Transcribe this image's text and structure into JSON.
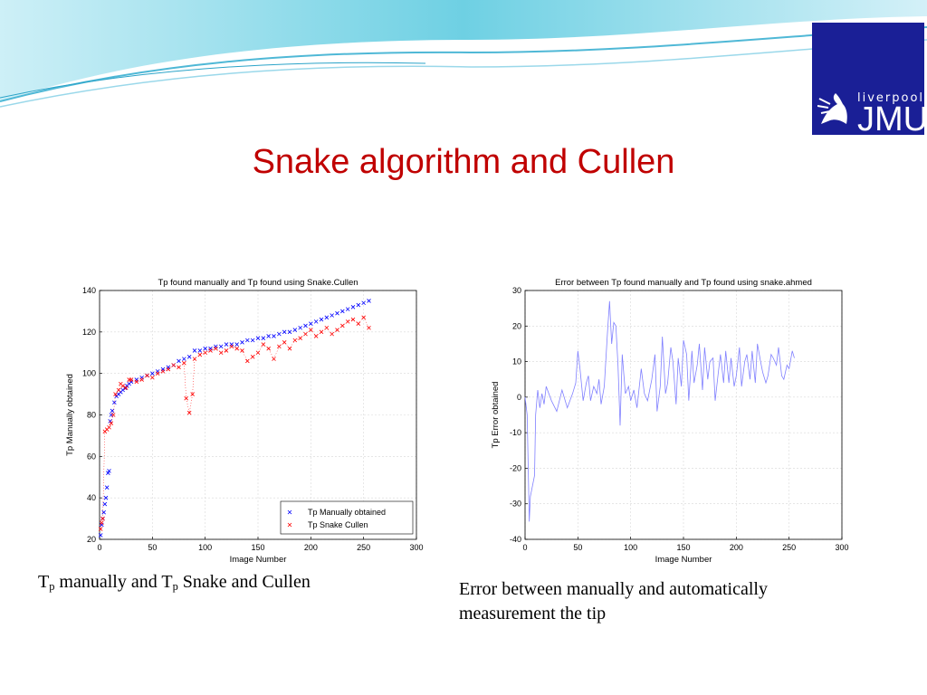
{
  "slide": {
    "title": "Snake algorithm and Cullen",
    "logo": {
      "small_text": "liverpool",
      "big_text": "JMU"
    }
  },
  "captions": {
    "left": {
      "t1": "T",
      "sub1": "p",
      "mid": " manually and T",
      "sub2": "p",
      "end": " Snake and Cullen"
    },
    "right": "Error between manually and automatically measurement the tip"
  },
  "colors": {
    "title": "#c00000",
    "logo_bg": "#1a1f96",
    "series_manual": "#0000ff",
    "series_snake": "#ff0000",
    "error_line": "#8080ff"
  },
  "chart_data": [
    {
      "type": "scatter",
      "title": "Tp found manually and Tp found using Snake.Cullen",
      "xlabel": "Image Number",
      "ylabel": "Tp Manually obtained",
      "xlim": [
        0,
        300
      ],
      "ylim": [
        20,
        140
      ],
      "xticks": [
        0,
        50,
        100,
        150,
        200,
        250,
        300
      ],
      "yticks": [
        20,
        40,
        60,
        80,
        100,
        120,
        140
      ],
      "legend_position": "bottom-right",
      "series": [
        {
          "name": "Tp Manually obtained",
          "x": [
            1,
            2,
            3,
            4,
            5,
            6,
            7,
            8,
            9,
            10,
            11,
            12,
            14,
            16,
            18,
            20,
            22,
            24,
            26,
            28,
            30,
            35,
            40,
            45,
            50,
            55,
            60,
            65,
            70,
            75,
            80,
            85,
            90,
            95,
            100,
            105,
            110,
            115,
            120,
            125,
            130,
            135,
            140,
            145,
            150,
            155,
            160,
            165,
            170,
            175,
            180,
            185,
            190,
            195,
            200,
            205,
            210,
            215,
            220,
            225,
            230,
            235,
            240,
            245,
            250,
            255
          ],
          "y": [
            22,
            27,
            30,
            33,
            37,
            40,
            45,
            52,
            53,
            77,
            80,
            82,
            86,
            89,
            90,
            91,
            92,
            93,
            94,
            95,
            96,
            97,
            98,
            99,
            100,
            101,
            102,
            103,
            104,
            106,
            107,
            108,
            111,
            111,
            112,
            112,
            113,
            113,
            114,
            114,
            114,
            115,
            116,
            116,
            117,
            117,
            118,
            118,
            119,
            120,
            120,
            121,
            122,
            123,
            124,
            125,
            126,
            127,
            128,
            129,
            130,
            131,
            132,
            133,
            134,
            135
          ]
        },
        {
          "name": "Tp Snake Cullen",
          "x": [
            1,
            2,
            3,
            5,
            7,
            9,
            11,
            13,
            15,
            18,
            20,
            22,
            25,
            28,
            30,
            35,
            40,
            45,
            50,
            55,
            60,
            65,
            70,
            75,
            80,
            82,
            85,
            88,
            90,
            95,
            100,
            105,
            110,
            115,
            120,
            125,
            130,
            135,
            140,
            145,
            150,
            155,
            160,
            165,
            170,
            175,
            180,
            185,
            190,
            195,
            200,
            205,
            210,
            215,
            220,
            225,
            230,
            235,
            240,
            245,
            250,
            255
          ],
          "y": [
            25,
            28,
            30,
            72,
            73,
            74,
            76,
            80,
            90,
            92,
            95,
            94,
            93,
            97,
            97,
            96,
            97,
            99,
            98,
            100,
            101,
            102,
            104,
            103,
            105,
            88,
            81,
            90,
            107,
            109,
            110,
            111,
            112,
            110,
            111,
            113,
            112,
            111,
            106,
            108,
            110,
            114,
            112,
            107,
            113,
            115,
            112,
            116,
            117,
            119,
            121,
            118,
            120,
            122,
            119,
            121,
            123,
            125,
            126,
            124,
            127,
            122
          ]
        }
      ]
    },
    {
      "type": "line",
      "title": "Error between Tp found manually and Tp found using   snake.ahmed",
      "xlabel": "Image Number",
      "ylabel": "Tp Error obtained",
      "xlim": [
        0,
        300
      ],
      "ylim": [
        -40,
        30
      ],
      "xticks": [
        0,
        50,
        100,
        150,
        200,
        250,
        300
      ],
      "yticks": [
        -40,
        -30,
        -20,
        -10,
        0,
        10,
        20,
        30
      ],
      "series": [
        {
          "name": "",
          "x": [
            0,
            2,
            4,
            5,
            7,
            9,
            10,
            12,
            14,
            16,
            18,
            20,
            25,
            30,
            35,
            40,
            45,
            48,
            50,
            52,
            55,
            58,
            60,
            62,
            65,
            68,
            70,
            72,
            75,
            78,
            80,
            82,
            84,
            86,
            88,
            90,
            92,
            95,
            98,
            100,
            103,
            106,
            110,
            113,
            116,
            120,
            123,
            125,
            128,
            130,
            133,
            135,
            138,
            140,
            143,
            145,
            148,
            150,
            153,
            155,
            158,
            160,
            163,
            165,
            168,
            170,
            173,
            175,
            178,
            180,
            183,
            185,
            188,
            190,
            193,
            195,
            198,
            200,
            203,
            205,
            208,
            210,
            213,
            215,
            218,
            220,
            223,
            225,
            228,
            230,
            233,
            235,
            238,
            240,
            243,
            245,
            248,
            250,
            253,
            255
          ],
          "y": [
            0,
            -5,
            -35,
            -28,
            -25,
            -22,
            -5,
            2,
            -3,
            1,
            -2,
            3,
            -1,
            -4,
            2,
            -3,
            1,
            4,
            13,
            8,
            -1,
            4,
            6,
            -1,
            3,
            1,
            5,
            -2,
            3,
            18,
            27,
            15,
            21,
            20,
            9,
            -8,
            12,
            1,
            3,
            -1,
            2,
            -3,
            8,
            1,
            -1,
            5,
            12,
            -4,
            3,
            17,
            1,
            4,
            14,
            10,
            -2,
            11,
            3,
            16,
            12,
            -1,
            13,
            4,
            9,
            15,
            2,
            14,
            5,
            10,
            11,
            -1,
            7,
            12,
            4,
            13,
            4,
            11,
            3,
            6,
            14,
            3,
            10,
            12,
            5,
            13,
            4,
            15,
            10,
            7,
            4,
            6,
            12,
            11,
            9,
            14,
            6,
            5,
            9,
            8,
            13,
            11
          ]
        }
      ]
    }
  ]
}
